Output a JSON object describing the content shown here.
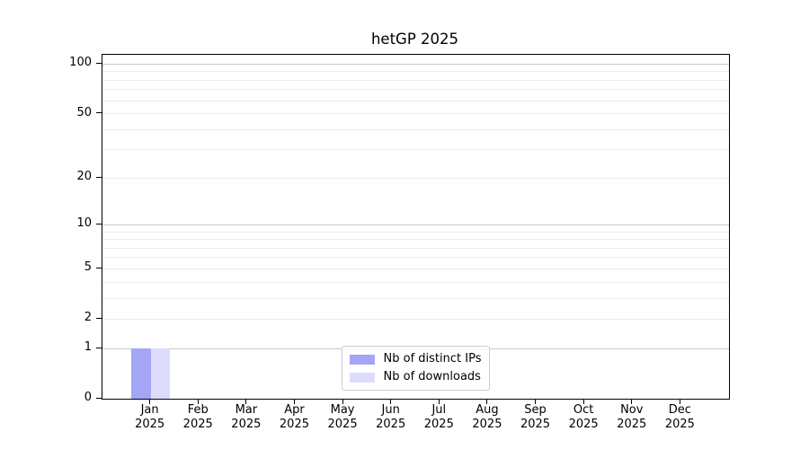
{
  "chart_data": {
    "type": "bar",
    "title": "hetGP 2025",
    "categories": [
      "Jan",
      "Feb",
      "Mar",
      "Apr",
      "May",
      "Jun",
      "Jul",
      "Aug",
      "Sep",
      "Oct",
      "Nov",
      "Dec"
    ],
    "x_sublabel": "2025",
    "series": [
      {
        "name": "Nb of distinct IPs",
        "color": "#a5a5f6",
        "values": [
          1,
          0,
          0,
          0,
          0,
          0,
          0,
          0,
          0,
          0,
          0,
          0
        ]
      },
      {
        "name": "Nb of downloads",
        "color": "#dcdcfa",
        "values": [
          1,
          0,
          0,
          0,
          0,
          0,
          0,
          0,
          0,
          0,
          0,
          0
        ]
      }
    ],
    "xlabel": "",
    "ylabel": "",
    "yscale": "log1p",
    "ylim": [
      0,
      114
    ],
    "yticks": [
      0,
      1,
      2,
      5,
      10,
      20,
      50,
      100
    ],
    "grid": {
      "major_lines": [
        1,
        10,
        100
      ],
      "minor_lines": [
        2,
        3,
        4,
        5,
        6,
        7,
        8,
        9,
        20,
        30,
        40,
        50,
        60,
        70,
        80,
        90
      ],
      "major_color": "#c8c8c8",
      "minor_color": "#ececec"
    },
    "legend_position": "lower center inside",
    "frame": true
  }
}
